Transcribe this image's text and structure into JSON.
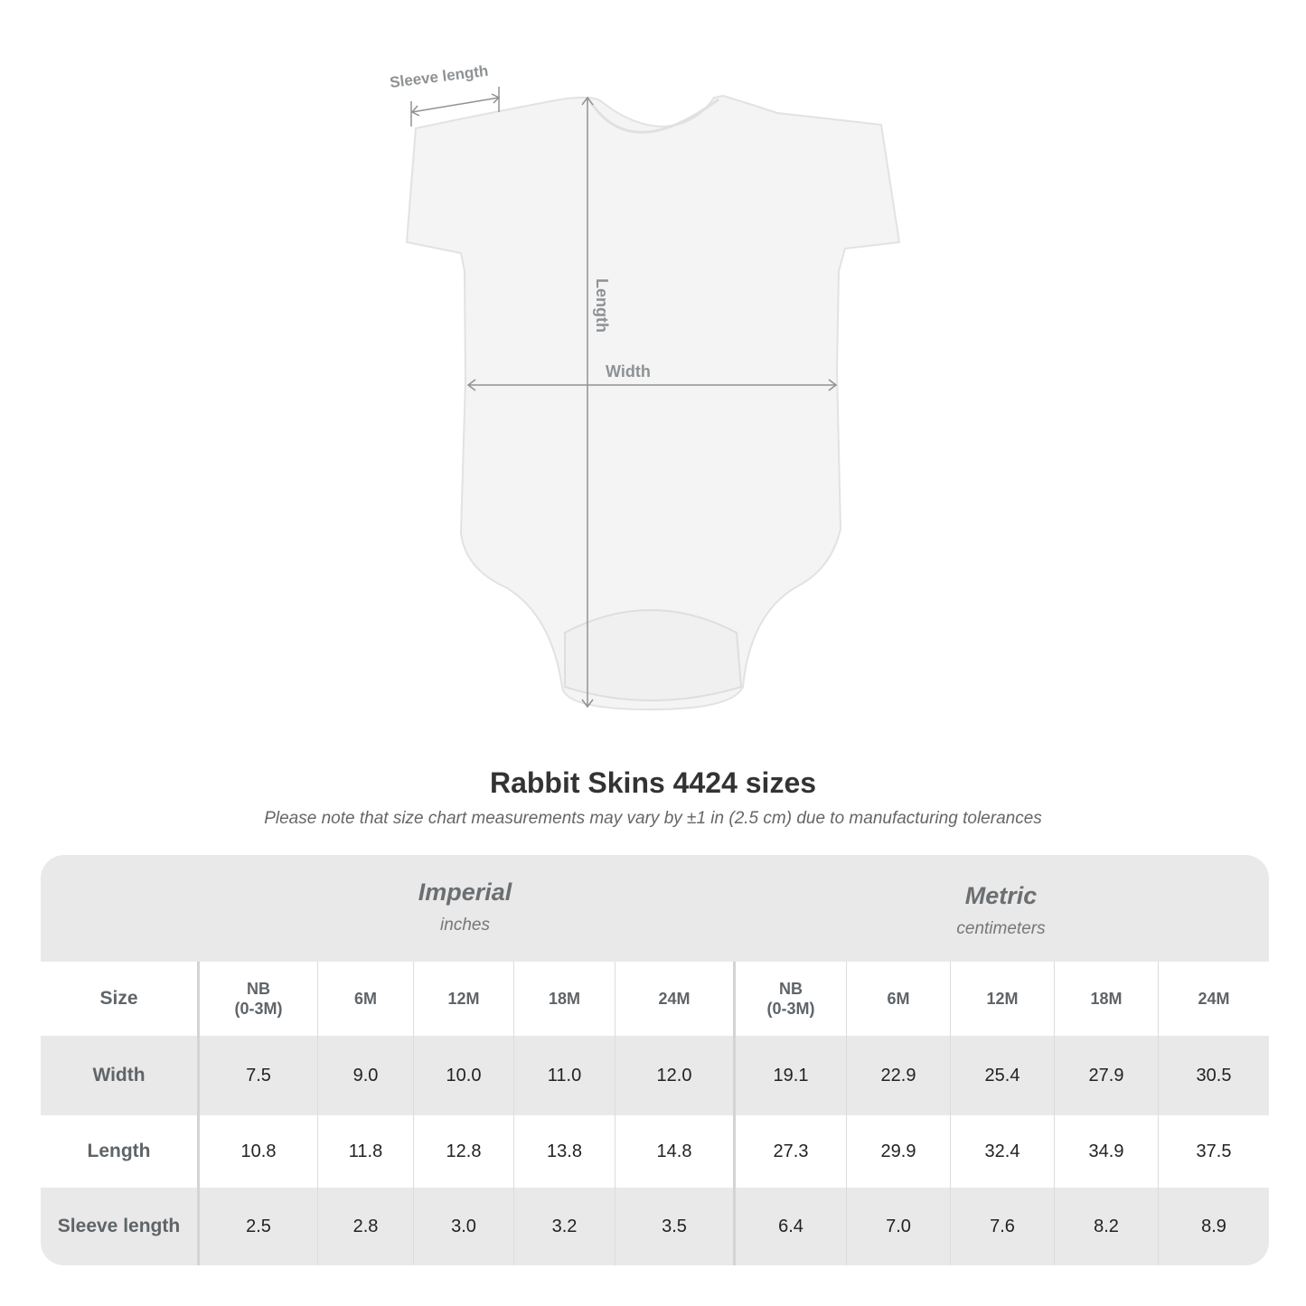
{
  "diagram": {
    "labels": {
      "sleeve": "Sleeve length",
      "length": "Length",
      "width": "Width"
    },
    "garment_color": "#f4f4f4",
    "measure_line_color": "#8e9295"
  },
  "title": "Rabbit Skins 4424 sizes",
  "subtitle": "Please note that size chart measurements may vary by ±1 in (2.5 cm) due to manufacturing tolerances",
  "table": {
    "imperial": {
      "name": "Imperial",
      "unit": "inches"
    },
    "metric": {
      "name": "Metric",
      "unit": "centimeters"
    },
    "size_label": "Size",
    "sizes": [
      "NB\n(0-3M)",
      "6M",
      "12M",
      "18M",
      "24M",
      "NB\n(0-3M)",
      "6M",
      "12M",
      "18M",
      "24M"
    ],
    "rows": [
      {
        "label": "Width",
        "values": [
          "7.5",
          "9.0",
          "10.0",
          "11.0",
          "12.0",
          "19.1",
          "22.9",
          "25.4",
          "27.9",
          "30.5"
        ]
      },
      {
        "label": "Length",
        "values": [
          "10.8",
          "11.8",
          "12.8",
          "13.8",
          "14.8",
          "27.3",
          "29.9",
          "32.4",
          "34.9",
          "37.5"
        ]
      },
      {
        "label": "Sleeve length",
        "values": [
          "2.5",
          "2.8",
          "3.0",
          "3.2",
          "3.5",
          "6.4",
          "7.0",
          "7.6",
          "8.2",
          "8.9"
        ]
      }
    ]
  }
}
